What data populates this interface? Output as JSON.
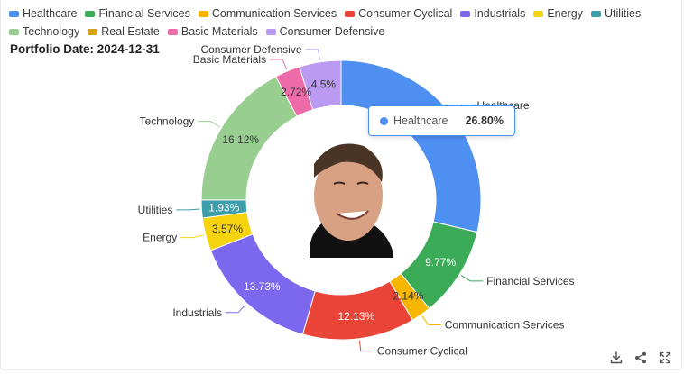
{
  "chart_data": {
    "type": "pie",
    "subtitle": "Portfolio Date: 2024-12-31",
    "legend_position": "top-left",
    "slices": [
      {
        "name": "Healthcare",
        "value": 26.8,
        "label": "",
        "color": "#4e8ff2"
      },
      {
        "name": "Financial Services",
        "value": 9.77,
        "label": "9.77%",
        "color": "#3bab58"
      },
      {
        "name": "Communication Services",
        "value": 2.14,
        "label": "2.14%",
        "color": "#f7b500"
      },
      {
        "name": "Consumer Cyclical",
        "value": 12.13,
        "label": "12.13%",
        "color": "#ea4438"
      },
      {
        "name": "Industrials",
        "value": 13.73,
        "label": "13.73%",
        "color": "#7b68ee"
      },
      {
        "name": "Energy",
        "value": 3.57,
        "label": "3.57%",
        "color": "#f5d40f"
      },
      {
        "name": "Utilities",
        "value": 1.93,
        "label": "1.93%",
        "color": "#3c9ea8"
      },
      {
        "name": "Technology",
        "value": 16.12,
        "label": "16.12%",
        "color": "#98cf90"
      },
      {
        "name": "Real Estate",
        "value": 0,
        "label": "",
        "color": "#d4a016"
      },
      {
        "name": "Basic Materials",
        "value": 2.72,
        "label": "2.72%",
        "color": "#ee6ba9"
      },
      {
        "name": "Consumer Defensive",
        "value": 4.5,
        "label": "4.5%",
        "color": "#bb9af2"
      }
    ],
    "legend": [
      "Healthcare",
      "Financial Services",
      "Communication Services",
      "Consumer Cyclical",
      "Industrials",
      "Energy",
      "Utilities",
      "Technology",
      "Real Estate",
      "Basic Materials",
      "Consumer Defensive"
    ],
    "tooltip": {
      "name": "Healthcare",
      "value": "26.80%"
    }
  },
  "toolbox": {
    "icons": [
      "download-icon",
      "share-icon",
      "fullscreen-icon"
    ]
  }
}
